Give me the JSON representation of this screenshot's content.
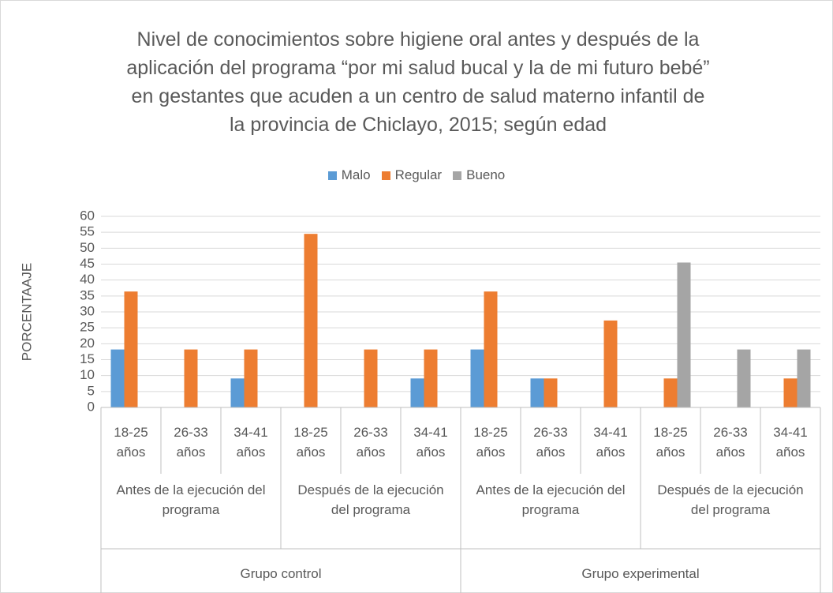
{
  "chart_data": {
    "type": "bar",
    "title": "Nivel de conocimientos sobre higiene oral antes y después de la aplicación del programa “por mi salud bucal y la de mi futuro bebé” en gestantes que acuden a un centro de salud materno infantil de la provincia de Chiclayo, 2015; según edad",
    "y_label": "PORCENTAAJE",
    "categories": [
      "18-25 años",
      "26-33 años",
      "34-41 años",
      "18-25 años",
      "26-33 años",
      "34-41 años",
      "18-25 años",
      "26-33 años",
      "34-41 años",
      "18-25 años",
      "26-33 años",
      "34-41 años"
    ],
    "phases": [
      "Antes de la ejecución del programa",
      "Después de la ejecución del programa",
      "Antes de la ejecución del programa",
      "Después de la ejecución del programa"
    ],
    "groups": [
      "Grupo control",
      "Grupo experimental"
    ],
    "series": [
      {
        "name": "Malo",
        "color": "#5b9bd5",
        "values": [
          18.2,
          0,
          9.1,
          0,
          0,
          9.1,
          18.2,
          9.1,
          0,
          0,
          0,
          0
        ]
      },
      {
        "name": "Regular",
        "color": "#ed7d31",
        "values": [
          36.4,
          18.2,
          18.2,
          54.5,
          18.2,
          18.2,
          36.4,
          9.1,
          27.3,
          9.1,
          0,
          9.1
        ]
      },
      {
        "name": "Bueno",
        "color": "#a5a5a5",
        "values": [
          0,
          0,
          0,
          0,
          0,
          0,
          0,
          0,
          0,
          45.5,
          18.2,
          18.2
        ]
      }
    ],
    "ylim": [
      0,
      60
    ],
    "yticks": [
      0,
      5,
      10,
      15,
      20,
      25,
      30,
      35,
      40,
      45,
      50,
      55,
      60
    ],
    "grid": true,
    "legend": "top"
  }
}
